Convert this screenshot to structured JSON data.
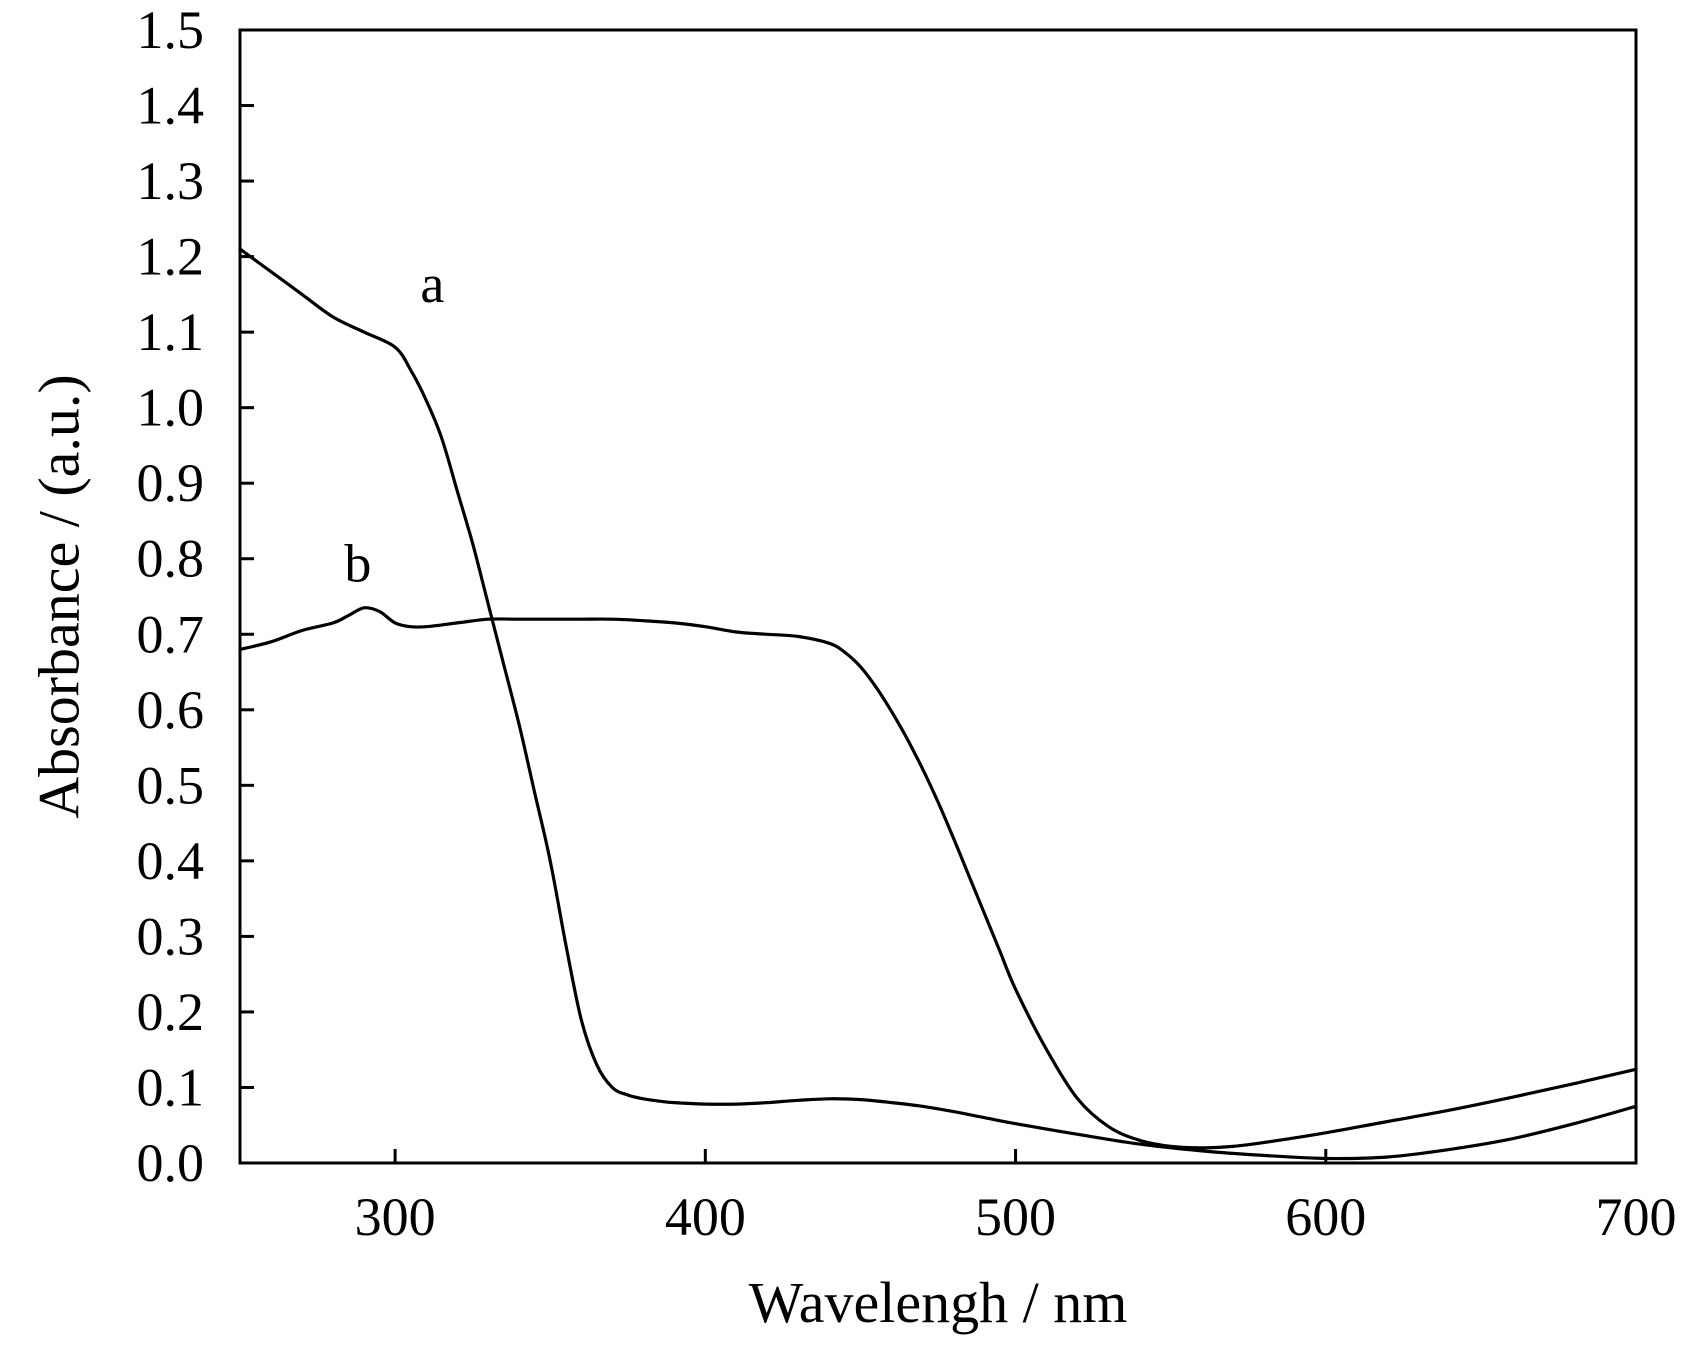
{
  "chart_data": {
    "type": "line",
    "title": "",
    "xlabel": "Wavelengh / nm",
    "ylabel": "Absorbance / (a.u.)",
    "xlim": [
      250,
      700
    ],
    "ylim": [
      0.0,
      1.5
    ],
    "xticks": [
      300,
      400,
      500,
      600,
      700
    ],
    "xtick_labels": [
      "300",
      "400",
      "500",
      "600",
      "700"
    ],
    "yticks": [
      0.0,
      0.1,
      0.2,
      0.3,
      0.4,
      0.5,
      0.6,
      0.7,
      0.8,
      0.9,
      1.0,
      1.1,
      1.2,
      1.3,
      1.4,
      1.5
    ],
    "ytick_labels": [
      "0.0",
      "0.1",
      "0.2",
      "0.3",
      "0.4",
      "0.5",
      "0.6",
      "0.7",
      "0.8",
      "0.9",
      "1.0",
      "1.1",
      "1.2",
      "1.3",
      "1.4",
      "1.5"
    ],
    "grid": false,
    "legend": "none",
    "series": [
      {
        "name": "a",
        "label_at": [
          312,
          1.14
        ],
        "x": [
          250,
          260,
          270,
          280,
          290,
          300,
          305,
          310,
          315,
          320,
          325,
          330,
          335,
          340,
          345,
          350,
          355,
          360,
          365,
          370,
          375,
          380,
          385,
          390,
          400,
          410,
          420,
          430,
          440,
          450,
          460,
          470,
          480,
          490,
          500,
          520,
          540,
          560,
          580,
          600,
          620,
          640,
          660,
          680,
          700
        ],
        "y": [
          1.21,
          1.18,
          1.15,
          1.12,
          1.1,
          1.08,
          1.05,
          1.01,
          0.96,
          0.89,
          0.82,
          0.74,
          0.66,
          0.58,
          0.49,
          0.4,
          0.29,
          0.19,
          0.13,
          0.1,
          0.09,
          0.085,
          0.082,
          0.08,
          0.078,
          0.078,
          0.08,
          0.083,
          0.085,
          0.084,
          0.08,
          0.075,
          0.068,
          0.06,
          0.052,
          0.038,
          0.025,
          0.016,
          0.01,
          0.006,
          0.008,
          0.018,
          0.032,
          0.052,
          0.075
        ]
      },
      {
        "name": "b",
        "label_at": [
          288,
          0.77
        ],
        "x": [
          250,
          260,
          270,
          280,
          285,
          290,
          295,
          300,
          305,
          310,
          320,
          330,
          340,
          350,
          360,
          370,
          380,
          390,
          400,
          410,
          420,
          430,
          440,
          445,
          450,
          455,
          460,
          465,
          470,
          475,
          480,
          485,
          490,
          495,
          500,
          510,
          520,
          530,
          540,
          550,
          560,
          570,
          580,
          600,
          620,
          640,
          660,
          680,
          700
        ],
        "y": [
          0.68,
          0.69,
          0.705,
          0.715,
          0.725,
          0.735,
          0.73,
          0.715,
          0.71,
          0.71,
          0.715,
          0.72,
          0.72,
          0.72,
          0.72,
          0.72,
          0.718,
          0.715,
          0.71,
          0.703,
          0.7,
          0.697,
          0.688,
          0.676,
          0.657,
          0.63,
          0.598,
          0.562,
          0.522,
          0.478,
          0.43,
          0.38,
          0.33,
          0.28,
          0.23,
          0.15,
          0.085,
          0.048,
          0.03,
          0.022,
          0.02,
          0.022,
          0.027,
          0.04,
          0.055,
          0.07,
          0.087,
          0.105,
          0.124
        ]
      }
    ]
  }
}
